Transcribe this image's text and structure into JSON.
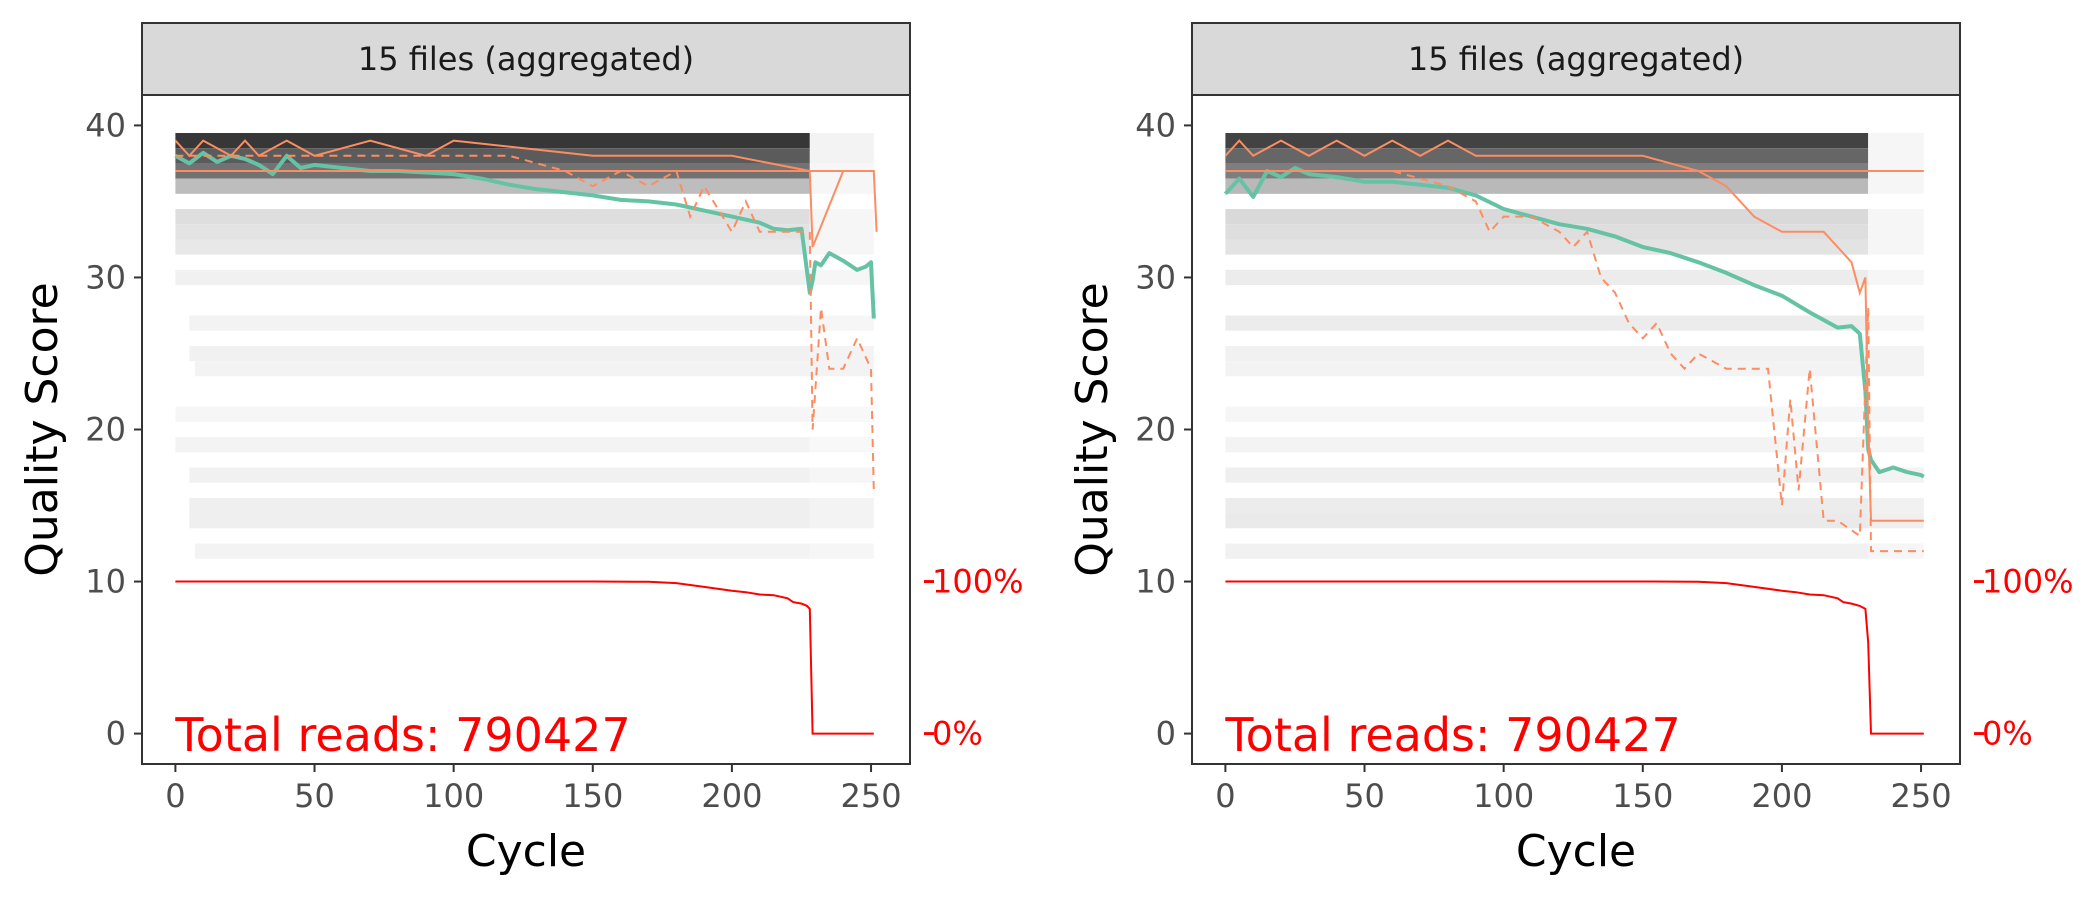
{
  "colors": {
    "mean_line": "#66c2a5",
    "quartile_lines": "#fc8d62",
    "reads_line": "#ff0000",
    "strip_fill": "#d9d9d9",
    "panel_border": "#333333"
  },
  "chart_data": [
    {
      "type": "heatmap",
      "strip_label": "15 files (aggregated)",
      "xlabel": "Cycle",
      "ylabel": "Quality Score",
      "xlim": [
        -12,
        264
      ],
      "ylim": [
        -2,
        42
      ],
      "xticks": [
        "0",
        "50",
        "100",
        "150",
        "200",
        "250"
      ],
      "yticks": [
        "0",
        "10",
        "20",
        "30",
        "40"
      ],
      "secondary_ticks": [
        "100%",
        "0%"
      ],
      "annotation": "Total reads: 790427",
      "density_rows": [
        {
          "q": 39,
          "x": [
            [
              0,
              228,
              0.85
            ],
            [
              228,
              251,
              0.05
            ]
          ]
        },
        {
          "q": 38,
          "x": [
            [
              0,
              228,
              0.7
            ],
            [
              228,
              251,
              0.05
            ]
          ]
        },
        {
          "q": 37,
          "x": [
            [
              0,
              228,
              0.6
            ],
            [
              228,
              251,
              0.04
            ]
          ]
        },
        {
          "q": 36,
          "x": [
            [
              0,
              228,
              0.28
            ],
            [
              228,
              251,
              0.04
            ]
          ]
        },
        {
          "q": 34,
          "x": [
            [
              0,
              228,
              0.14
            ],
            [
              228,
              251,
              0.04
            ]
          ]
        },
        {
          "q": 33,
          "x": [
            [
              0,
              228,
              0.12
            ],
            [
              228,
              251,
              0.04
            ]
          ]
        },
        {
          "q": 32,
          "x": [
            [
              0,
              228,
              0.1
            ],
            [
              228,
              251,
              0.04
            ]
          ]
        },
        {
          "q": 30,
          "x": [
            [
              0,
              228,
              0.06
            ],
            [
              228,
              251,
              0.04
            ]
          ]
        },
        {
          "q": 27,
          "x": [
            [
              5,
              228,
              0.05
            ],
            [
              228,
              251,
              0.04
            ]
          ]
        },
        {
          "q": 25,
          "x": [
            [
              5,
              228,
              0.06
            ],
            [
              228,
              251,
              0.05
            ]
          ]
        },
        {
          "q": 24,
          "x": [
            [
              7,
              228,
              0.05
            ],
            [
              228,
              251,
              0.05
            ]
          ]
        },
        {
          "q": 21,
          "x": [
            [
              0,
              228,
              0.04
            ],
            [
              228,
              251,
              0.03
            ]
          ]
        },
        {
          "q": 19,
          "x": [
            [
              0,
              228,
              0.05
            ],
            [
              228,
              251,
              0.03
            ]
          ]
        },
        {
          "q": 17,
          "x": [
            [
              5,
              228,
              0.06
            ],
            [
              228,
              251,
              0.04
            ]
          ]
        },
        {
          "q": 15,
          "x": [
            [
              5,
              228,
              0.07
            ],
            [
              228,
              251,
              0.05
            ]
          ]
        },
        {
          "q": 14,
          "x": [
            [
              5,
              228,
              0.07
            ],
            [
              228,
              251,
              0.05
            ]
          ]
        },
        {
          "q": 12,
          "x": [
            [
              7,
              228,
              0.05
            ],
            [
              228,
              251,
              0.04
            ]
          ]
        }
      ],
      "series": [
        {
          "style": "mean",
          "x": [
            0,
            5,
            10,
            15,
            20,
            25,
            30,
            35,
            40,
            45,
            50,
            60,
            70,
            80,
            90,
            100,
            110,
            120,
            130,
            140,
            150,
            160,
            170,
            180,
            190,
            200,
            210,
            215,
            220,
            225,
            228,
            229,
            230,
            232,
            235,
            240,
            245,
            248,
            250,
            251
          ],
          "y": [
            38,
            37.5,
            38.2,
            37.6,
            38,
            37.8,
            37.4,
            36.8,
            38,
            37.2,
            37.4,
            37.2,
            37.0,
            37.0,
            36.9,
            36.8,
            36.5,
            36.1,
            35.8,
            35.6,
            35.4,
            35.1,
            35.0,
            34.8,
            34.4,
            34.0,
            33.6,
            33.2,
            33.1,
            33.2,
            29.0,
            29.8,
            31.0,
            30.8,
            31.6,
            31.1,
            30.5,
            30.7,
            31.0,
            27.3
          ]
        },
        {
          "style": "solid",
          "x": [
            0,
            5,
            10,
            20,
            25,
            30,
            40,
            50,
            70,
            90,
            100,
            150,
            200,
            228,
            229,
            240,
            251,
            252
          ],
          "y": [
            39,
            38,
            39,
            38,
            39,
            38,
            39,
            38,
            39,
            38,
            39,
            38,
            38,
            37,
            32,
            37,
            37,
            33
          ]
        },
        {
          "style": "solid",
          "x": [
            0,
            228,
            229,
            251
          ],
          "y": [
            37,
            37,
            37,
            37
          ]
        },
        {
          "style": "dashed",
          "x": [
            0,
            20,
            40,
            60,
            80,
            100,
            120,
            140,
            150,
            160,
            170,
            180,
            185,
            190,
            200,
            205,
            210,
            220,
            228,
            229,
            232,
            235,
            240,
            245,
            250,
            251
          ],
          "y": [
            38,
            38,
            38,
            38,
            38,
            38,
            38,
            37,
            36,
            37,
            36,
            37,
            34,
            36,
            33,
            35,
            33,
            33,
            33,
            20,
            28,
            24,
            24,
            26,
            24,
            16
          ]
        }
      ],
      "reads_curve": {
        "x": [
          0,
          150,
          170,
          180,
          190,
          200,
          205,
          210,
          215,
          220,
          222,
          225,
          227,
          228,
          229,
          230,
          250,
          251
        ],
        "y": [
          100,
          100,
          99.8,
          99,
          96.5,
          94,
          93,
          91.5,
          91,
          89,
          86.5,
          85.5,
          84,
          82,
          0,
          0,
          0,
          0
        ]
      }
    },
    {
      "type": "heatmap",
      "strip_label": "15 files (aggregated)",
      "xlabel": "Cycle",
      "ylabel": "Quality Score",
      "xlim": [
        -12,
        264
      ],
      "ylim": [
        -2,
        42
      ],
      "xticks": [
        "0",
        "50",
        "100",
        "150",
        "200",
        "250"
      ],
      "yticks": [
        "0",
        "10",
        "20",
        "30",
        "40"
      ],
      "secondary_ticks": [
        "100%",
        "0%"
      ],
      "annotation": "Total reads: 790427",
      "density_rows": [
        {
          "q": 39,
          "x": [
            [
              0,
              231,
              0.8
            ],
            [
              231,
              251,
              0.04
            ]
          ]
        },
        {
          "q": 38,
          "x": [
            [
              0,
              231,
              0.65
            ],
            [
              231,
              251,
              0.04
            ]
          ]
        },
        {
          "q": 37,
          "x": [
            [
              0,
              231,
              0.55
            ],
            [
              231,
              251,
              0.04
            ]
          ]
        },
        {
          "q": 36,
          "x": [
            [
              0,
              231,
              0.3
            ],
            [
              231,
              251,
              0.04
            ]
          ]
        },
        {
          "q": 34,
          "x": [
            [
              0,
              231,
              0.16
            ],
            [
              231,
              251,
              0.04
            ]
          ]
        },
        {
          "q": 33,
          "x": [
            [
              0,
              231,
              0.14
            ],
            [
              231,
              251,
              0.04
            ]
          ]
        },
        {
          "q": 32,
          "x": [
            [
              0,
              231,
              0.12
            ],
            [
              231,
              251,
              0.04
            ]
          ]
        },
        {
          "q": 30,
          "x": [
            [
              0,
              231,
              0.08
            ],
            [
              231,
              251,
              0.04
            ]
          ]
        },
        {
          "q": 27,
          "x": [
            [
              0,
              231,
              0.08
            ],
            [
              231,
              251,
              0.04
            ]
          ]
        },
        {
          "q": 25,
          "x": [
            [
              0,
              231,
              0.06
            ],
            [
              231,
              251,
              0.05
            ]
          ]
        },
        {
          "q": 24,
          "x": [
            [
              0,
              231,
              0.05
            ],
            [
              231,
              251,
              0.05
            ]
          ]
        },
        {
          "q": 21,
          "x": [
            [
              0,
              231,
              0.04
            ],
            [
              231,
              251,
              0.04
            ]
          ]
        },
        {
          "q": 19,
          "x": [
            [
              0,
              231,
              0.05
            ],
            [
              231,
              251,
              0.04
            ]
          ]
        },
        {
          "q": 17,
          "x": [
            [
              0,
              231,
              0.07
            ],
            [
              231,
              251,
              0.05
            ]
          ]
        },
        {
          "q": 15,
          "x": [
            [
              0,
              231,
              0.08
            ],
            [
              231,
              251,
              0.06
            ]
          ]
        },
        {
          "q": 14,
          "x": [
            [
              0,
              231,
              0.09
            ],
            [
              231,
              251,
              0.07
            ]
          ]
        },
        {
          "q": 12,
          "x": [
            [
              0,
              231,
              0.06
            ],
            [
              231,
              251,
              0.04
            ]
          ]
        }
      ],
      "series": [
        {
          "style": "mean",
          "x": [
            0,
            5,
            10,
            15,
            20,
            25,
            30,
            40,
            50,
            60,
            70,
            80,
            90,
            100,
            110,
            120,
            130,
            140,
            150,
            160,
            170,
            180,
            190,
            200,
            210,
            220,
            225,
            228,
            230,
            231,
            232,
            235,
            240,
            245,
            250,
            251
          ],
          "y": [
            35.5,
            36.5,
            35.3,
            37.0,
            36.6,
            37.2,
            36.8,
            36.6,
            36.3,
            36.3,
            36.1,
            35.9,
            35.4,
            34.5,
            34.0,
            33.5,
            33.2,
            32.7,
            32.0,
            31.6,
            31.0,
            30.3,
            29.5,
            28.8,
            27.7,
            26.7,
            26.8,
            26.3,
            22.5,
            18.7,
            18.0,
            17.2,
            17.5,
            17.2,
            17.0,
            16.9
          ]
        },
        {
          "style": "solid",
          "x": [
            0,
            5,
            10,
            20,
            30,
            40,
            50,
            60,
            70,
            80,
            90,
            100,
            120,
            150,
            170,
            180,
            190,
            200,
            210,
            215,
            220,
            225,
            228,
            230,
            231,
            232,
            240,
            251
          ],
          "y": [
            38,
            39,
            38,
            39,
            38,
            39,
            38,
            39,
            38,
            39,
            38,
            38,
            38,
            38,
            37,
            36,
            34,
            33,
            33,
            33,
            32,
            31,
            29,
            30,
            20,
            14,
            14,
            14
          ]
        },
        {
          "style": "solid",
          "x": [
            0,
            100,
            231,
            251
          ],
          "y": [
            37,
            37,
            37,
            37
          ]
        },
        {
          "style": "dashed",
          "x": [
            0,
            20,
            40,
            60,
            80,
            90,
            95,
            100,
            110,
            120,
            125,
            130,
            135,
            140,
            145,
            150,
            155,
            160,
            165,
            170,
            180,
            185,
            190,
            195,
            200,
            203,
            206,
            210,
            215,
            220,
            228,
            231,
            232,
            240,
            251
          ],
          "y": [
            37,
            37,
            37,
            37,
            36,
            35,
            33,
            34,
            34,
            33,
            32,
            33,
            30,
            29,
            27,
            26,
            27,
            25,
            24,
            25,
            24,
            24,
            24,
            24,
            15,
            22,
            16,
            24,
            14,
            14,
            13,
            28,
            12,
            12,
            12
          ]
        }
      ],
      "reads_curve": {
        "x": [
          0,
          150,
          170,
          180,
          190,
          200,
          205,
          210,
          215,
          220,
          222,
          225,
          228,
          230,
          231,
          232,
          250,
          251
        ],
        "y": [
          100,
          100,
          99.8,
          99,
          96.5,
          94,
          93,
          91.5,
          91,
          89,
          86.5,
          85.5,
          84,
          82,
          60,
          0,
          0,
          0
        ]
      }
    }
  ]
}
